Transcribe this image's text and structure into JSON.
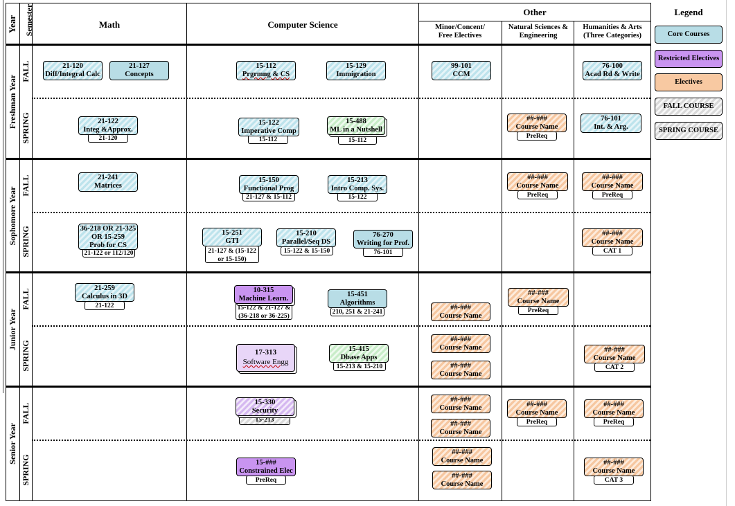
{
  "headers": {
    "year": "Year",
    "semester": "Semester",
    "math": "Math",
    "cs": "Computer Science",
    "other": "Other",
    "minor": "Minor/Concent/ Free Electives",
    "natsci": "Natural Sciences & Engineering",
    "hum": "Humanities & Arts (Three Categories)",
    "legend": "Legend"
  },
  "years": [
    "Freshman Year",
    "Sophomore Year",
    "Junior Year",
    "Senior Year"
  ],
  "semesters": {
    "fall": "FALL",
    "spring": "SPRING"
  },
  "legend": {
    "core": "Core Courses",
    "restricted": "Restricted Electives",
    "electives": "Electives",
    "fall": "FALL COURSE",
    "spring": "SPRING COURSE"
  },
  "colors": {
    "core": "#b8dde6",
    "restricted": "#c994f0",
    "electives": "#f8c9a2",
    "fall_pattern": "#bde3ec",
    "spring_pattern": "#d9d9d9"
  },
  "courses": {
    "c2120": {
      "code": "21-120",
      "name": "Diff/Integral Calc"
    },
    "c2127": {
      "code": "21-127",
      "name": "Concepts"
    },
    "c15112": {
      "code": "15-112",
      "name": "Prgrmng & CS"
    },
    "c15129": {
      "code": "15-129",
      "name": "Immigration"
    },
    "c99101": {
      "code": "99-101",
      "name": "CCM"
    },
    "c76100": {
      "code": "76-100",
      "name": "Acad Rd & Write"
    },
    "c2122": {
      "code": "21-122",
      "name": "Integ &Approx.",
      "prereq": "21-120"
    },
    "c15122": {
      "code": "15-122",
      "name": "Imperative Comp",
      "prereq": "15-112"
    },
    "c15488": {
      "code": "15-488",
      "name": "ML in a Nutshell",
      "prereq": "15-112"
    },
    "fr_nat_sp": {
      "code": "##-###",
      "name": "Course Name",
      "prereq": "PreReq"
    },
    "c76101": {
      "code": "76-101",
      "name": "Int. & Arg."
    },
    "c21241": {
      "code": "21-241",
      "name": "Matrices"
    },
    "c15150": {
      "code": "15-150",
      "name": "Functional Prog",
      "prereq": "21-127 & 15-112"
    },
    "c15213": {
      "code": "15-213",
      "name": "Intro Comp. Sys.",
      "prereq": "15-122"
    },
    "so_nat_fa": {
      "code": "##-###",
      "name": "Course Name",
      "prereq": "PreReq"
    },
    "so_hum_fa": {
      "code": "##-###",
      "name": "Course Name",
      "prereq": "PreReq"
    },
    "c36218": {
      "code": "36-218 OR 21-325",
      "line2": "OR 15-259",
      "name": "Prob for CS",
      "prereq": "21-122 or 112/120"
    },
    "c15251": {
      "code": "15-251",
      "name": "GTI",
      "prereq": "21-127 & (15-122",
      "prereq2": "or 15-150)"
    },
    "c15210": {
      "code": "15-210",
      "name": "Parallel/Seq DS",
      "prereq": "15-122 & 15-150"
    },
    "c76270": {
      "code": "76-270",
      "name": "Writing for Prof.",
      "prereq": "76-101"
    },
    "so_hum_sp": {
      "code": "##-###",
      "name": "Course Name",
      "prereq": "CAT 1"
    },
    "c21259": {
      "code": "21-259",
      "name": "Calculus in 3D",
      "prereq": "21-122"
    },
    "c10315": {
      "code": "10-315",
      "name": "Machine Learn.",
      "prereq": "15-122 & 21-127 &",
      "prereq2": "(36-218 or 36-225)"
    },
    "c15451": {
      "code": "15-451",
      "name": "Algorithms",
      "prereq": "210, 251 & 21-241"
    },
    "ju_min_fa": {
      "code": "##-###",
      "name": "Course Name"
    },
    "ju_nat_fa": {
      "code": "##-###",
      "name": "Course Name",
      "prereq": "PreReq"
    },
    "c17313": {
      "code": "17-313",
      "name": "Software Engg"
    },
    "c15415": {
      "code": "15-415",
      "name": "Dbase Apps",
      "prereq": "15-213 & 15-210"
    },
    "ju_min_sp1": {
      "code": "##-###",
      "name": "Course Name"
    },
    "ju_min_sp2": {
      "code": "##-###",
      "name": "Course Name"
    },
    "ju_hum_sp": {
      "code": "##-###",
      "name": "Course Name",
      "prereq": "CAT 2"
    },
    "c15330": {
      "code": "15-330",
      "name": "Security",
      "prereq": "15-213"
    },
    "se_min_fa1": {
      "code": "##-###",
      "name": "Course Name"
    },
    "se_min_fa2": {
      "code": "##-###",
      "name": "Course Name"
    },
    "se_nat_fa": {
      "code": "##-###",
      "name": "Course Name",
      "prereq": "PreReq"
    },
    "se_hum_fa": {
      "code": "##-###",
      "name": "Course Name",
      "prereq": "PreReq"
    },
    "c15xxx": {
      "code": "15-###",
      "name": "Constrained Elec",
      "prereq": "PreReq"
    },
    "se_min_sp1": {
      "code": "##-###",
      "name": "Course Name"
    },
    "se_min_sp2": {
      "code": "##-###",
      "name": "Course Name"
    },
    "se_hum_sp": {
      "code": "##-###",
      "name": "Course Name",
      "prereq": "CAT 3"
    }
  }
}
